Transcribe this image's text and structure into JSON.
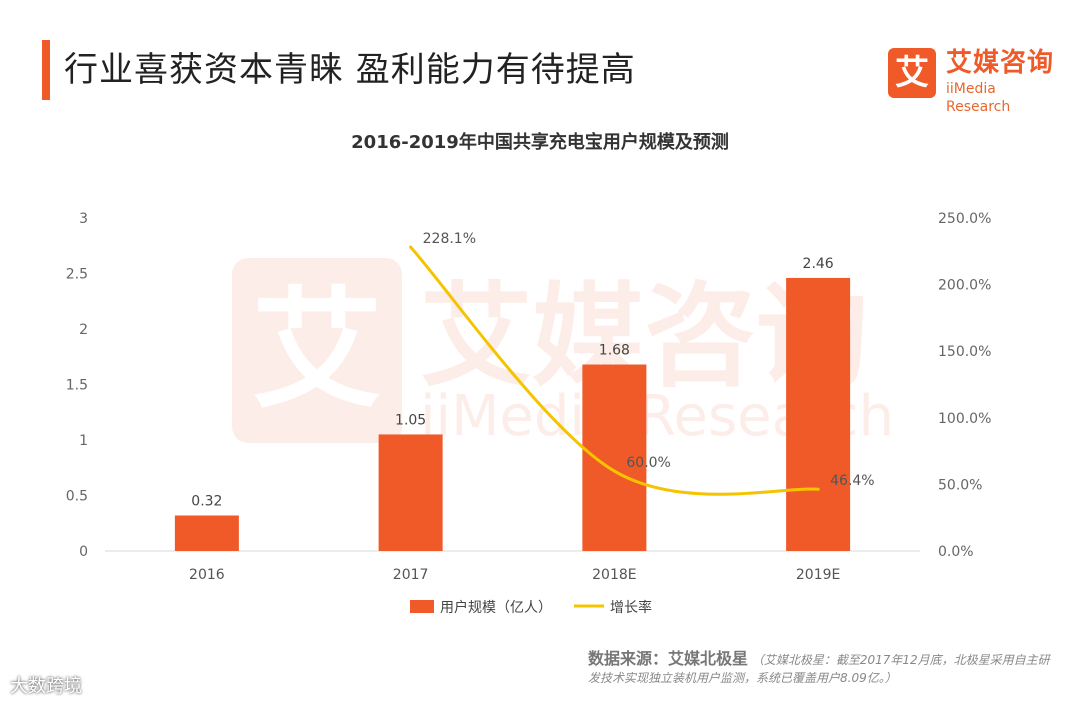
{
  "header": {
    "title": "行业喜获资本青睐  盈利能力有待提高",
    "logo_glyph": "艾",
    "logo_cn": "艾媒咨询",
    "logo_en": "iiMedia Research"
  },
  "watermark": {
    "glyph": "艾",
    "cn": "艾媒咨询",
    "en": "iiMedia Research"
  },
  "chart_data": {
    "type": "bar",
    "title": "2016-2019年中国共享充电宝用户规模及预测",
    "categories": [
      "2016",
      "2017",
      "2018E",
      "2019E"
    ],
    "series": [
      {
        "name": "用户规模（亿人）",
        "type": "bar",
        "axis": "left",
        "color": "#f05a28",
        "values": [
          0.32,
          1.05,
          1.68,
          2.46
        ],
        "labels": [
          "0.32",
          "1.05",
          "1.68",
          "2.46"
        ]
      },
      {
        "name": "增长率",
        "type": "line",
        "axis": "right",
        "color": "#f5c400",
        "values": [
          null,
          228.1,
          60.0,
          46.4
        ],
        "labels": [
          "",
          "228.1%",
          "60.0%",
          "46.4%"
        ]
      }
    ],
    "y_left": {
      "ylim": [
        0,
        3
      ],
      "ticks": [
        0,
        0.5,
        1,
        1.5,
        2,
        2.5,
        3
      ],
      "tick_labels": [
        "0",
        "0.5",
        "1",
        "1.5",
        "2",
        "2.5",
        "3"
      ]
    },
    "y_right": {
      "ylim": [
        0,
        250
      ],
      "ticks": [
        0,
        50,
        100,
        150,
        200,
        250
      ],
      "tick_labels": [
        "0.0%",
        "50.0%",
        "100.0%",
        "150.0%",
        "200.0%",
        "250.0%"
      ]
    },
    "grid": false,
    "legend_position": "bottom"
  },
  "footer": {
    "source_label": "数据来源：艾媒北极星",
    "source_note": "（艾媒北极星：截至2017年12月底，北极星采用自主研发技术实现独立装机用户监测，系统已覆盖用户8.09亿。）",
    "account": "大数跨境"
  }
}
